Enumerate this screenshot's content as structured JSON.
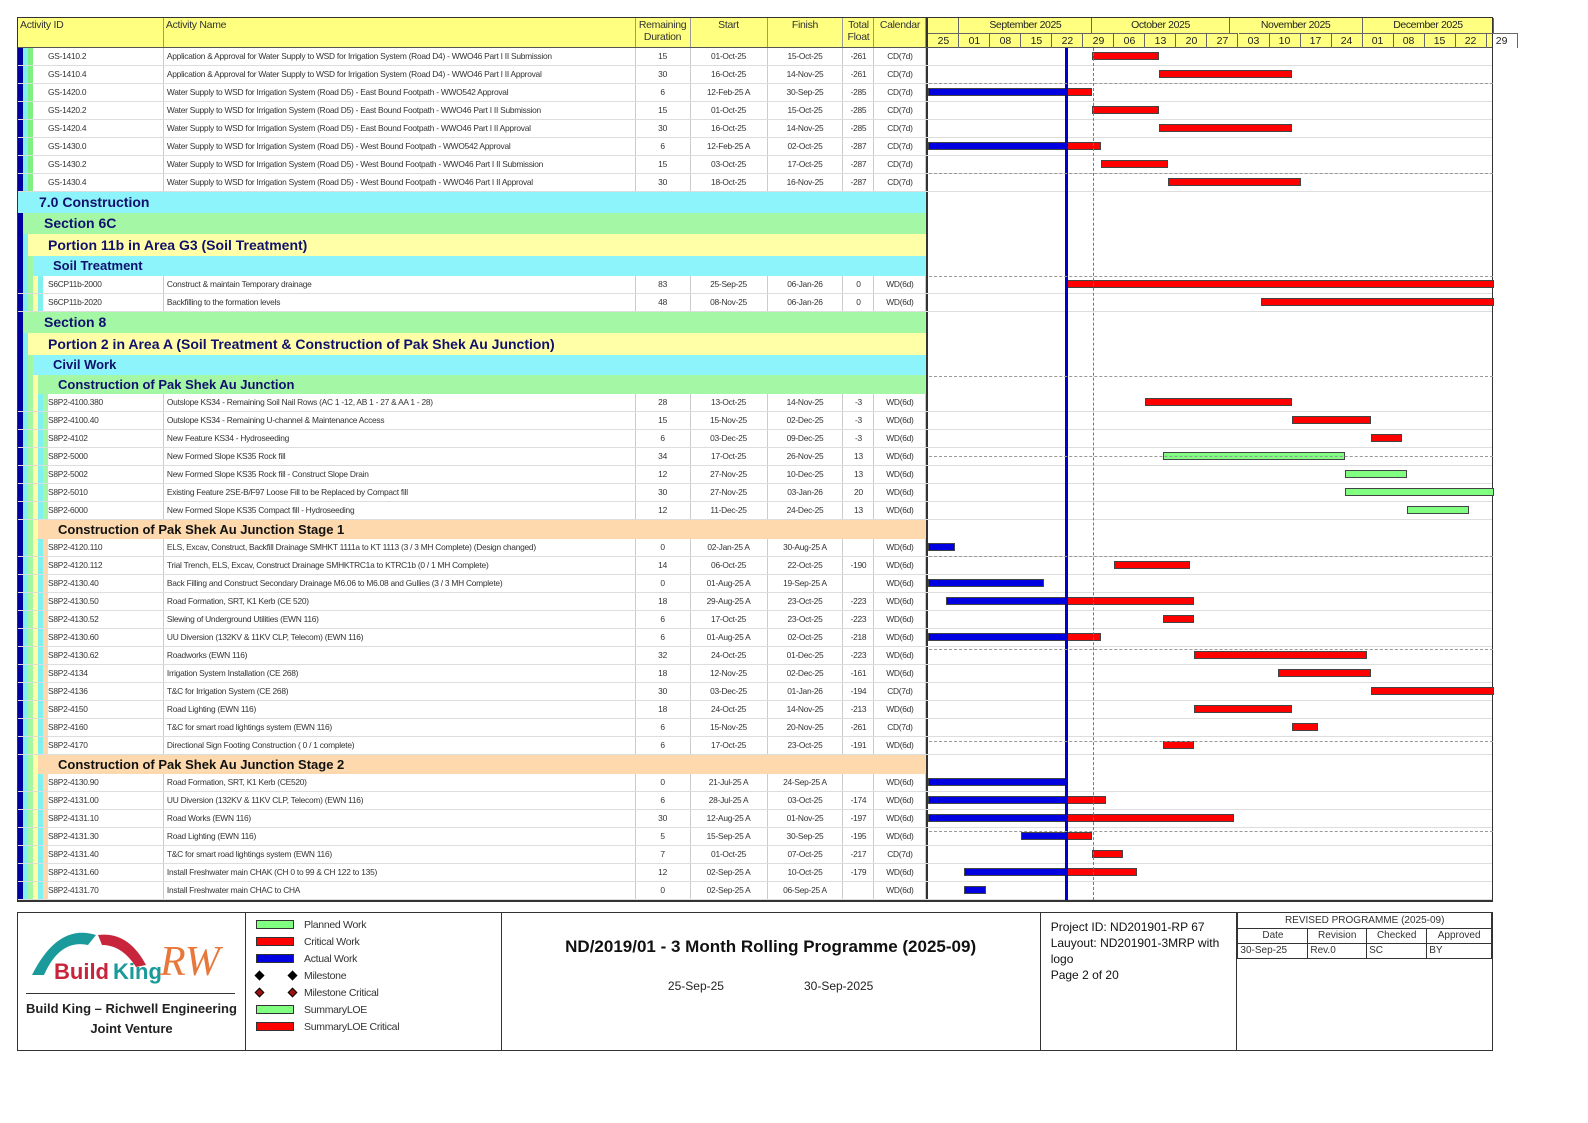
{
  "columns": {
    "id": "Activity ID",
    "name": "Activity Name",
    "rem": "Remaining Duration",
    "start": "Start",
    "finish": "Finish",
    "float": "Total Float",
    "cal": "Calendar"
  },
  "timeline": {
    "months": [
      "September 2025",
      "October 2025",
      "November 2025",
      "December 2025"
    ],
    "weeks": [
      "25",
      "01",
      "08",
      "15",
      "22",
      "29",
      "06",
      "13",
      "20",
      "27",
      "03",
      "10",
      "17",
      "24",
      "01",
      "08",
      "15",
      "22",
      "29"
    ],
    "start_date": "25-Aug-25",
    "data_date": "25-Sep-25"
  },
  "colors": {
    "critical": "#ff0000",
    "planned": "#80ff80",
    "actual": "#0000e0",
    "data_line": "#0000cc",
    "band_cyan": "#8cf4fa",
    "band_green": "#a4f7a4",
    "band_yellow": "#ffffa8",
    "band_orange": "#fdd9ad"
  },
  "rows": [
    {
      "type": "act",
      "g": "a",
      "v": [
        "GS-1410.2",
        "Application & Approval for Water Supply to WSD for Irrigation System (Road D4) - WWO46 Part I II Submission",
        "15",
        "01-Oct-25",
        "15-Oct-25",
        "-261",
        "CD(7d)"
      ]
    },
    {
      "type": "act",
      "g": "a",
      "v": [
        "GS-1410.4",
        "Application & Approval for Water Supply to WSD for Irrigation System (Road D4) - WWO46 Part I II  Approval",
        "30",
        "16-Oct-25",
        "14-Nov-25",
        "-261",
        "CD(7d)"
      ]
    },
    {
      "type": "act",
      "g": "a",
      "v": [
        "GS-1420.0",
        "Water Supply to WSD for Irrigation System (Road D5) - East Bound Footpath - WWO542 Approval",
        "6",
        "12-Feb-25 A",
        "30-Sep-25",
        "-285",
        "CD(7d)"
      ]
    },
    {
      "type": "act",
      "g": "a",
      "v": [
        "GS-1420.2",
        "Water Supply to WSD for Irrigation System (Road D5) - East Bound Footpath - WWO46 Part I II Submission",
        "15",
        "01-Oct-25",
        "15-Oct-25",
        "-285",
        "CD(7d)"
      ]
    },
    {
      "type": "act",
      "g": "a",
      "v": [
        "GS-1420.4",
        "Water Supply to WSD for Irrigation System (Road D5) - East Bound Footpath - WWO46 Part I II  Approval",
        "30",
        "16-Oct-25",
        "14-Nov-25",
        "-285",
        "CD(7d)"
      ]
    },
    {
      "type": "act",
      "g": "a",
      "v": [
        "GS-1430.0",
        "Water Supply to WSD for Irrigation System (Road D5) - West Bound Footpath - WWO542 Approval",
        "6",
        "12-Feb-25 A",
        "02-Oct-25",
        "-287",
        "CD(7d)"
      ]
    },
    {
      "type": "act",
      "g": "a",
      "v": [
        "GS-1430.2",
        "Water Supply to WSD for Irrigation System (Road D5) - West Bound Footpath - WWO46 Part I II Submission",
        "15",
        "03-Oct-25",
        "17-Oct-25",
        "-287",
        "CD(7d)"
      ]
    },
    {
      "type": "act",
      "g": "a",
      "v": [
        "GS-1430.4",
        "Water Supply to WSD for Irrigation System (Road D5) - West Bound Footpath - WWO46 Part I II  Approval",
        "30",
        "18-Oct-25",
        "16-Nov-25",
        "-287",
        "CD(7d)"
      ]
    },
    {
      "type": "band",
      "lv": 1,
      "c": "band_cyan",
      "label": "7.0 Construction"
    },
    {
      "type": "band",
      "lv": 2,
      "c": "band_green",
      "label": "Section 6C"
    },
    {
      "type": "band",
      "lv": 3,
      "c": "band_yellow",
      "label": "Portion 11b in Area G3 (Soil Treatment)"
    },
    {
      "type": "band",
      "lv": 4,
      "c": "band_cyan",
      "label": "Soil Treatment"
    },
    {
      "type": "act",
      "g": "b",
      "v": [
        "S6CP11b-2000",
        "Construct & maintain Temporary drainage",
        "83",
        "25-Sep-25",
        "06-Jan-26",
        "0",
        "WD(6d)"
      ]
    },
    {
      "type": "act",
      "g": "b",
      "v": [
        "S6CP11b-2020",
        "Backfilling to the formation levels",
        "48",
        "08-Nov-25",
        "06-Jan-26",
        "0",
        "WD(6d)"
      ]
    },
    {
      "type": "band",
      "lv": 2,
      "c": "band_green",
      "label": "Section 8"
    },
    {
      "type": "band",
      "lv": 3,
      "c": "band_yellow",
      "label": "Portion 2 in Area A   (Soil Treatment & Construction of Pak Shek Au Junction)"
    },
    {
      "type": "band",
      "lv": 4,
      "c": "band_cyan",
      "label": "Civil Work"
    },
    {
      "type": "band",
      "lv": 5,
      "c": "band_green",
      "label": "Construction of Pak Shek Au Junction"
    },
    {
      "type": "act",
      "g": "c",
      "v": [
        "S8P2-4100.380",
        "Outslope KS34 - Remaining Soil Nail Rows (AC 1 -12, AB 1 - 27 & AA 1 - 28)",
        "28",
        "13-Oct-25",
        "14-Nov-25",
        "-3",
        "WD(6d)"
      ]
    },
    {
      "type": "act",
      "g": "c",
      "v": [
        "S8P2-4100.40",
        "Outslope KS34 - Remaining U-channel & Maintenance Access",
        "15",
        "15-Nov-25",
        "02-Dec-25",
        "-3",
        "WD(6d)"
      ]
    },
    {
      "type": "act",
      "g": "c",
      "v": [
        "S8P2-4102",
        "New Feature KS34 - Hydroseeding",
        "6",
        "03-Dec-25",
        "09-Dec-25",
        "-3",
        "WD(6d)"
      ]
    },
    {
      "type": "act",
      "g": "c",
      "v": [
        "S8P2-5000",
        "New Formed Slope KS35 Rock fill",
        "34",
        "17-Oct-25",
        "26-Nov-25",
        "13",
        "WD(6d)"
      ]
    },
    {
      "type": "act",
      "g": "c",
      "v": [
        "S8P2-5002",
        "New Formed Slope KS35 Rock fill - Construct Slope Drain",
        "12",
        "27-Nov-25",
        "10-Dec-25",
        "13",
        "WD(6d)"
      ]
    },
    {
      "type": "act",
      "g": "c",
      "v": [
        "S8P2-5010",
        "Existing Feature 2SE-B/F97 Loose Fill to be Replaced by Compact fill",
        "30",
        "27-Nov-25",
        "03-Jan-26",
        "20",
        "WD(6d)"
      ]
    },
    {
      "type": "act",
      "g": "c",
      "v": [
        "S8P2-6000",
        "New Formed Slope KS35 Compact fill - Hydroseeding",
        "12",
        "11-Dec-25",
        "24-Dec-25",
        "13",
        "WD(6d)"
      ]
    },
    {
      "type": "band",
      "lv": 5,
      "c": "band_orange",
      "stage": true,
      "label": "Construction of Pak Shek Au Junction Stage 1"
    },
    {
      "type": "act",
      "g": "d",
      "v": [
        "S8P2-4120.110",
        "ELS, Excav, Construct, Backfill Drainage SMHKT 1111a to KT 1113  (3 / 3 MH Complete)  (Design changed)",
        "0",
        "02-Jan-25 A",
        "30-Aug-25 A",
        "",
        "WD(6d)"
      ]
    },
    {
      "type": "act",
      "g": "d",
      "v": [
        "S8P2-4120.112",
        "Trial Trench, ELS, Excav, Construct Drainage SMHKTRC1a to KTRC1b (0 / 1 MH Complete)",
        "14",
        "06-Oct-25",
        "22-Oct-25",
        "-190",
        "WD(6d)"
      ]
    },
    {
      "type": "act",
      "g": "d",
      "v": [
        "S8P2-4130.40",
        "Back Filling and Construct Secondary Drainage M6.06 to M6.08 and Gullies (3 / 3 MH Complete)",
        "0",
        "01-Aug-25 A",
        "19-Sep-25 A",
        "",
        "WD(6d)"
      ]
    },
    {
      "type": "act",
      "g": "d",
      "v": [
        "S8P2-4130.50",
        "Road Formation, SRT,  K1 Kerb          (CE 520)",
        "18",
        "29-Aug-25 A",
        "23-Oct-25",
        "-223",
        "WD(6d)"
      ]
    },
    {
      "type": "act",
      "g": "d",
      "v": [
        "S8P2-4130.52",
        "Slewing of Underground Utilities (EWN 116)",
        "6",
        "17-Oct-25",
        "23-Oct-25",
        "-223",
        "WD(6d)"
      ]
    },
    {
      "type": "act",
      "g": "d",
      "v": [
        "S8P2-4130.60",
        "UU Diversion (132KV & 11KV CLP, Telecom)  (EWN 116)",
        "6",
        "01-Aug-25 A",
        "02-Oct-25",
        "-218",
        "WD(6d)"
      ]
    },
    {
      "type": "act",
      "g": "d",
      "v": [
        "S8P2-4130.62",
        "Roadworks  (EWN 116)",
        "32",
        "24-Oct-25",
        "01-Dec-25",
        "-223",
        "WD(6d)"
      ]
    },
    {
      "type": "act",
      "g": "d",
      "v": [
        "S8P2-4134",
        "Irrigation System Installation                                             (CE 268)",
        "18",
        "12-Nov-25",
        "02-Dec-25",
        "-161",
        "WD(6d)"
      ]
    },
    {
      "type": "act",
      "g": "d",
      "v": [
        "S8P2-4136",
        "T&C for  Irrigation System                                             (CE 268)",
        "30",
        "03-Dec-25",
        "01-Jan-26",
        "-194",
        "CD(7d)"
      ]
    },
    {
      "type": "act",
      "g": "d",
      "v": [
        "S8P2-4150",
        "Road Lighting  (EWN 116)",
        "18",
        "24-Oct-25",
        "14-Nov-25",
        "-213",
        "WD(6d)"
      ]
    },
    {
      "type": "act",
      "g": "d",
      "v": [
        "S8P2-4160",
        "T&C for smart road lightings system  (EWN 116)",
        "6",
        "15-Nov-25",
        "20-Nov-25",
        "-261",
        "CD(7d)"
      ]
    },
    {
      "type": "act",
      "g": "d",
      "v": [
        "S8P2-4170",
        "Directional Sign Footing Construction   ( 0 / 1 complete)",
        "6",
        "17-Oct-25",
        "23-Oct-25",
        "-191",
        "WD(6d)"
      ]
    },
    {
      "type": "band",
      "lv": 5,
      "c": "band_orange",
      "stage": true,
      "label": "Construction of Pak Shek Au Junction Stage 2"
    },
    {
      "type": "act",
      "g": "d",
      "v": [
        "S8P2-4130.90",
        "Road Formation, SRT,  K1 Kerb         (CE520)",
        "0",
        "21-Jul-25 A",
        "24-Sep-25 A",
        "",
        "WD(6d)"
      ]
    },
    {
      "type": "act",
      "g": "d",
      "v": [
        "S8P2-4131.00",
        "UU Diversion (132KV & 11KV CLP, Telecom)  (EWN 116)",
        "6",
        "28-Jul-25 A",
        "03-Oct-25",
        "-174",
        "WD(6d)"
      ]
    },
    {
      "type": "act",
      "g": "d",
      "v": [
        "S8P2-4131.10",
        "Road Works  (EWN 116)",
        "30",
        "12-Aug-25 A",
        "01-Nov-25",
        "-197",
        "WD(6d)"
      ]
    },
    {
      "type": "act",
      "g": "d",
      "v": [
        "S8P2-4131.30",
        "Road Lighting (EWN 116)",
        "5",
        "15-Sep-25 A",
        "30-Sep-25",
        "-195",
        "WD(6d)"
      ]
    },
    {
      "type": "act",
      "g": "d",
      "v": [
        "S8P2-4131.40",
        "T&C for smart road lightings system  (EWN 116)",
        "7",
        "01-Oct-25",
        "07-Oct-25",
        "-217",
        "CD(7d)"
      ]
    },
    {
      "type": "act",
      "g": "d",
      "v": [
        "S8P2-4131.60",
        "Install Freshwater main CHAK (CH 0 to 99  & CH 122 to 135)",
        "12",
        "02-Sep-25 A",
        "10-Oct-25",
        "-179",
        "WD(6d)"
      ]
    },
    {
      "type": "act",
      "g": "d",
      "v": [
        "S8P2-4131.70",
        "Install Freshwater main CHAC to CHA",
        "0",
        "02-Sep-25 A",
        "06-Sep-25 A",
        "",
        "WD(6d)"
      ]
    }
  ],
  "footer": {
    "logo_text": "Build King RW",
    "company_line1": "Build King – Richwell Engineering",
    "company_line2": "Joint Venture",
    "legend": [
      {
        "label": "Planned Work",
        "kind": "bar",
        "color": "#80ff80"
      },
      {
        "label": "Critical Work",
        "kind": "bar",
        "color": "#ff0000"
      },
      {
        "label": "Actual Work",
        "kind": "bar",
        "color": "#0000e0"
      },
      {
        "label": "Milestone",
        "kind": "diamond",
        "color": "#000000"
      },
      {
        "label": "Milestone Critical",
        "kind": "diamond",
        "color": "#a01010"
      },
      {
        "label": "SummaryLOE",
        "kind": "bar",
        "color": "#80ff80"
      },
      {
        "label": "SummaryLOE Critical",
        "kind": "bar",
        "color": "#ff0000"
      }
    ],
    "title": "ND/2019/01 - 3 Month Rolling Programme (2025-09)",
    "date1": "25-Sep-25",
    "date2": "30-Sep-2025",
    "project_id": "Project ID: ND201901-RP 67",
    "layout": "Lauyout: ND201901-3MRP with logo",
    "page": "Page 2 of 20",
    "revision": {
      "title": "REVISED PROGRAMME (2025-09)",
      "headers": [
        "Date",
        "Revision",
        "Checked",
        "Approved"
      ],
      "row": [
        "30-Sep-25",
        "Rev.0",
        "SC",
        "BY"
      ]
    }
  }
}
